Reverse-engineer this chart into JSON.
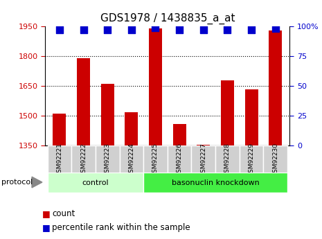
{
  "title": "GDS1978 / 1438835_a_at",
  "samples": [
    "GSM92221",
    "GSM92222",
    "GSM92223",
    "GSM92224",
    "GSM92225",
    "GSM92226",
    "GSM92227",
    "GSM92228",
    "GSM92229",
    "GSM92230"
  ],
  "counts": [
    1510,
    1790,
    1660,
    1520,
    1940,
    1460,
    1355,
    1680,
    1635,
    1930
  ],
  "percentile_ranks": [
    97,
    97,
    97,
    97,
    99,
    97,
    97,
    97,
    97,
    98
  ],
  "ylim_left": [
    1350,
    1950
  ],
  "ylim_right": [
    0,
    100
  ],
  "yticks_left": [
    1350,
    1500,
    1650,
    1800,
    1950
  ],
  "yticks_right": [
    0,
    25,
    50,
    75,
    100
  ],
  "ytick_labels_right": [
    "0",
    "25",
    "50",
    "75",
    "100%"
  ],
  "bar_color": "#cc0000",
  "dot_color": "#0000cc",
  "bg_color": "#ffffff",
  "tick_label_color_left": "#cc0000",
  "tick_label_color_right": "#0000cc",
  "protocol_groups": [
    {
      "label": "control",
      "start": 0,
      "end": 4,
      "color": "#ccffcc"
    },
    {
      "label": "basonuclin knockdown",
      "start": 4,
      "end": 10,
      "color": "#44ee44"
    }
  ],
  "protocol_label": "protocol",
  "legend_items": [
    {
      "label": "count",
      "color": "#cc0000"
    },
    {
      "label": "percentile rank within the sample",
      "color": "#0000cc"
    }
  ],
  "bar_width": 0.55,
  "dot_size": 45,
  "title_fontsize": 11,
  "tick_fontsize": 8,
  "label_fontsize": 8.5,
  "protocol_fontsize": 8,
  "sample_label_fontsize": 6.5
}
